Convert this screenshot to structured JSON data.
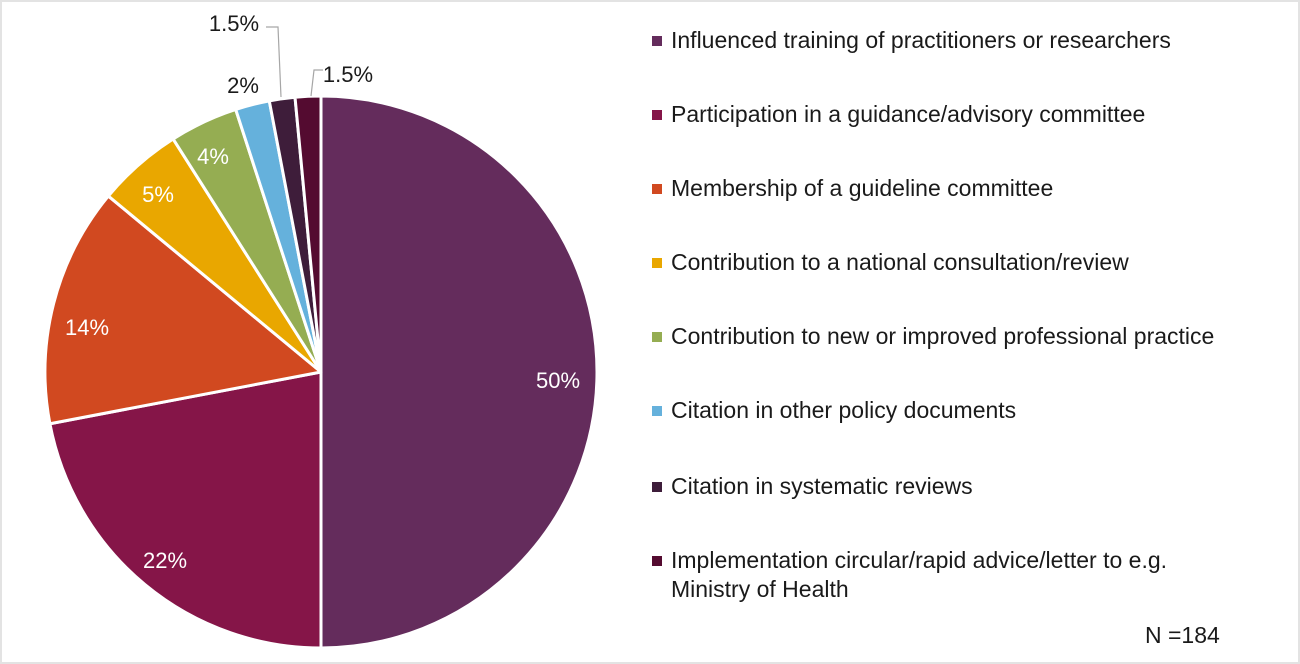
{
  "chart_data": {
    "type": "pie",
    "title": "",
    "note": "N =184",
    "legend_position": "right",
    "categories": [
      "Influenced training of practitioners or researchers",
      "Participation in a guidance/advisory committee",
      "Membership of a guideline committee",
      "Contribution to a national consultation/review",
      "Contribution to new or improved professional practice",
      "Citation in other policy documents",
      "Citation in systematic reviews",
      "Implementation circular/rapid advice/letter to e.g. Ministry of Health"
    ],
    "values": [
      50,
      22,
      14,
      5,
      4,
      2,
      1.5,
      1.5
    ],
    "labels": [
      "50%",
      "22%",
      "14%",
      "5%",
      "4%",
      "2%",
      "1.5%",
      "1.5%"
    ],
    "colors": [
      "#642c5c",
      "#851548",
      "#d14920",
      "#e9a700",
      "#95ad52",
      "#65b1dc",
      "#3e1d3a",
      "#540b30"
    ]
  },
  "legend": {
    "items": [
      {
        "label": "Influenced training of practitioners or researchers",
        "color": "#642c5c"
      },
      {
        "label": "Participation in a guidance/advisory committee",
        "color": "#851548"
      },
      {
        "label": "Membership of a guideline committee",
        "color": "#d14920"
      },
      {
        "label": "Contribution to a national consultation/review",
        "color": "#e9a700"
      },
      {
        "label": "Contribution to new or improved professional practice",
        "color": "#95ad52"
      },
      {
        "label": "Citation in other policy documents",
        "color": "#65b1dc"
      },
      {
        "label": "Citation in systematic reviews",
        "color": "#3e1d3a"
      },
      {
        "label_line1": "Implementation circular/rapid advice/letter to e.g.",
        "label_line2": "Ministry of Health",
        "color": "#540b30"
      }
    ]
  },
  "footer": {
    "n_label": "N =184"
  }
}
